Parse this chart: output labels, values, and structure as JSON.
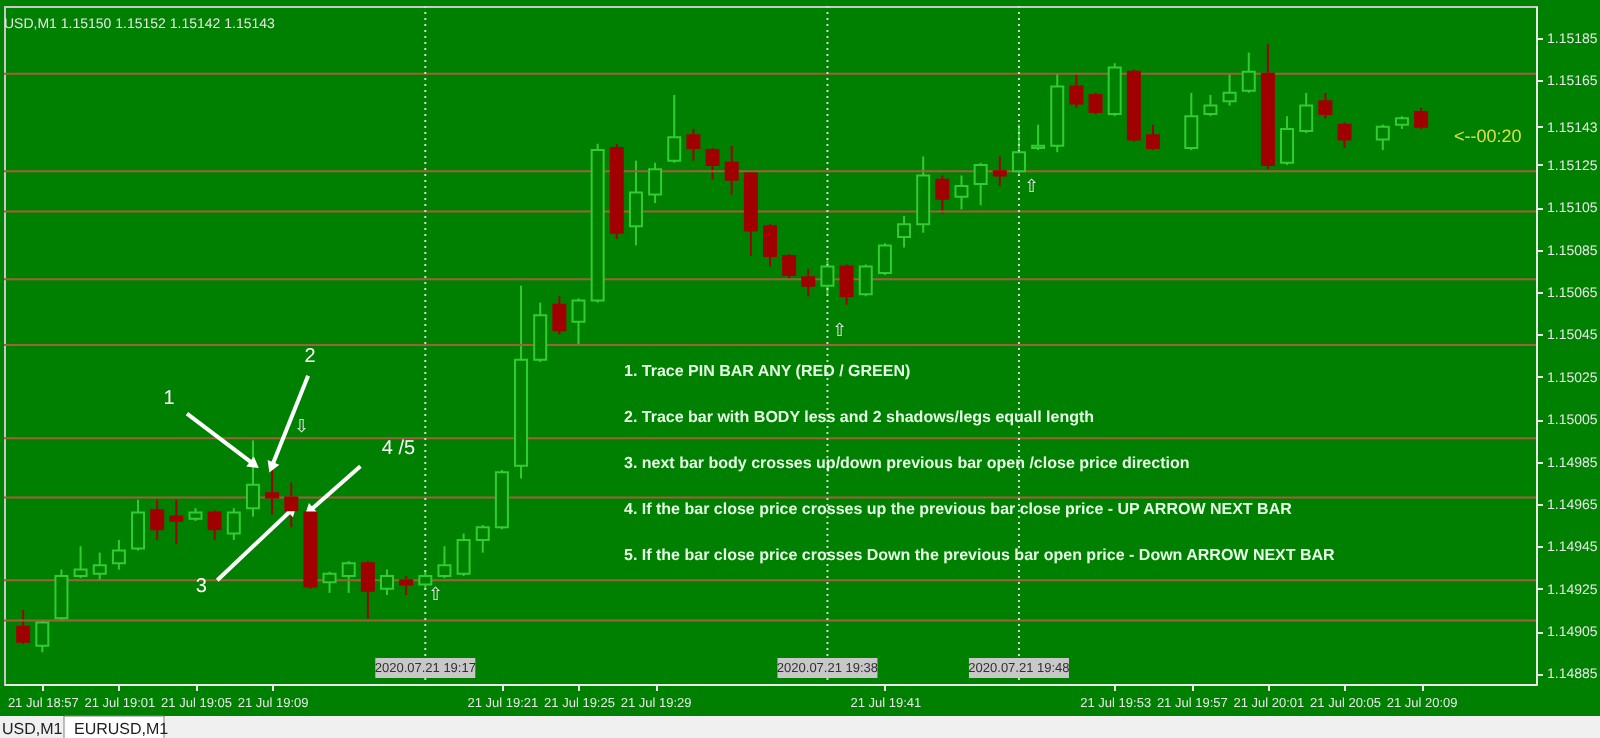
{
  "chart_data": {
    "type": "candlestick",
    "title": "USD,M1  1.15150 1.15152 1.15142 1.15143",
    "x": [
      "2020-07-21T18:56",
      "2020-07-21T18:57",
      "2020-07-21T18:58",
      "2020-07-21T18:59",
      "2020-07-21T19:00",
      "2020-07-21T19:01",
      "2020-07-21T19:02",
      "2020-07-21T19:03",
      "2020-07-21T19:04",
      "2020-07-21T19:05",
      "2020-07-21T19:06",
      "2020-07-21T19:07",
      "2020-07-21T19:08",
      "2020-07-21T19:09",
      "2020-07-21T19:10",
      "2020-07-21T19:11",
      "2020-07-21T19:12",
      "2020-07-21T19:13",
      "2020-07-21T19:14",
      "2020-07-21T19:15",
      "2020-07-21T19:16",
      "2020-07-21T19:17",
      "2020-07-21T19:18",
      "2020-07-21T19:19",
      "2020-07-21T19:20",
      "2020-07-21T19:21",
      "2020-07-21T19:22",
      "2020-07-21T19:23",
      "2020-07-21T19:24",
      "2020-07-21T19:25",
      "2020-07-21T19:26",
      "2020-07-21T19:27",
      "2020-07-21T19:28",
      "2020-07-21T19:29",
      "2020-07-21T19:30",
      "2020-07-21T19:31",
      "2020-07-21T19:32",
      "2020-07-21T19:33",
      "2020-07-21T19:34",
      "2020-07-21T19:35",
      "2020-07-21T19:36",
      "2020-07-21T19:37",
      "2020-07-21T19:38",
      "2020-07-21T19:39",
      "2020-07-21T19:40",
      "2020-07-21T19:41",
      "2020-07-21T19:42",
      "2020-07-21T19:43",
      "2020-07-21T19:44",
      "2020-07-21T19:45",
      "2020-07-21T19:46",
      "2020-07-21T19:47",
      "2020-07-21T19:48",
      "2020-07-21T19:49",
      "2020-07-21T19:50",
      "2020-07-21T19:51",
      "2020-07-21T19:52",
      "2020-07-21T19:53",
      "2020-07-21T19:54",
      "2020-07-21T19:55",
      "2020-07-21T19:57",
      "2020-07-21T19:58",
      "2020-07-21T19:59",
      "2020-07-21T20:00",
      "2020-07-21T20:01",
      "2020-07-21T20:02",
      "2020-07-21T20:03",
      "2020-07-21T20:04",
      "2020-07-21T20:05",
      "2020-07-21T20:07",
      "2020-07-21T20:08",
      "2020-07-21T20:09"
    ],
    "ohlc": [
      [
        1.14907,
        1.14915,
        1.14899,
        1.149
      ],
      [
        1.14898,
        1.1491,
        1.14895,
        1.14909
      ],
      [
        1.14911,
        1.14934,
        1.1491,
        1.14931
      ],
      [
        1.14931,
        1.14945,
        1.1493,
        1.14934
      ],
      [
        1.14932,
        1.14942,
        1.14929,
        1.14936
      ],
      [
        1.14937,
        1.14948,
        1.14934,
        1.14943
      ],
      [
        1.14944,
        1.14967,
        1.14943,
        1.14961
      ],
      [
        1.14962,
        1.14967,
        1.14948,
        1.14953
      ],
      [
        1.14959,
        1.14967,
        1.14946,
        1.14957
      ],
      [
        1.14958,
        1.14963,
        1.14957,
        1.14961
      ],
      [
        1.14961,
        1.14962,
        1.14948,
        1.14953
      ],
      [
        1.14951,
        1.14963,
        1.14948,
        1.14961
      ],
      [
        1.14963,
        1.14995,
        1.14959,
        1.14974
      ],
      [
        1.1497,
        1.14983,
        1.1496,
        1.14968
      ],
      [
        1.14968,
        1.14975,
        1.14954,
        1.14962
      ],
      [
        1.14961,
        1.14962,
        1.14925,
        1.14926
      ],
      [
        1.14928,
        1.14933,
        1.14923,
        1.14932
      ],
      [
        1.14931,
        1.14938,
        1.14923,
        1.14937
      ],
      [
        1.14937,
        1.14938,
        1.14911,
        1.14924
      ],
      [
        1.14925,
        1.14934,
        1.14922,
        1.14931
      ],
      [
        1.14929,
        1.14931,
        1.14922,
        1.14927
      ],
      [
        1.14927,
        1.14933,
        1.14925,
        1.14931
      ],
      [
        1.14931,
        1.14945,
        1.1493,
        1.14936
      ],
      [
        1.14932,
        1.14951,
        1.14931,
        1.14948
      ],
      [
        1.14948,
        1.14955,
        1.14942,
        1.14954
      ],
      [
        1.14954,
        1.14981,
        1.14953,
        1.1498
      ],
      [
        1.14983,
        1.15068,
        1.14977,
        1.15033
      ],
      [
        1.15033,
        1.1506,
        1.15032,
        1.15054
      ],
      [
        1.15059,
        1.15063,
        1.15045,
        1.15047
      ],
      [
        1.15051,
        1.15062,
        1.1504,
        1.15061
      ],
      [
        1.15061,
        1.15135,
        1.1506,
        1.15132
      ],
      [
        1.15133,
        1.15135,
        1.1509,
        1.15093
      ],
      [
        1.15096,
        1.15127,
        1.15087,
        1.15112
      ],
      [
        1.15111,
        1.15126,
        1.15107,
        1.15123
      ],
      [
        1.15127,
        1.15158,
        1.15126,
        1.15138
      ],
      [
        1.15139,
        1.15142,
        1.15127,
        1.15133
      ],
      [
        1.15132,
        1.15133,
        1.15118,
        1.15125
      ],
      [
        1.15126,
        1.15134,
        1.15111,
        1.15118
      ],
      [
        1.15121,
        1.15122,
        1.15082,
        1.15094
      ],
      [
        1.15096,
        1.15097,
        1.15077,
        1.15082
      ],
      [
        1.15082,
        1.15083,
        1.15071,
        1.15073
      ],
      [
        1.15072,
        1.15076,
        1.15063,
        1.15068
      ],
      [
        1.15068,
        1.1508,
        1.15064,
        1.15077
      ],
      [
        1.15077,
        1.15078,
        1.15059,
        1.15063
      ],
      [
        1.15064,
        1.15078,
        1.15063,
        1.15077
      ],
      [
        1.15074,
        1.15088,
        1.15073,
        1.15087
      ],
      [
        1.15091,
        1.15101,
        1.15086,
        1.15097
      ],
      [
        1.15097,
        1.15129,
        1.15093,
        1.1512
      ],
      [
        1.15118,
        1.1512,
        1.15102,
        1.15109
      ],
      [
        1.1511,
        1.1512,
        1.15104,
        1.15115
      ],
      [
        1.15116,
        1.15126,
        1.15106,
        1.15125
      ],
      [
        1.15122,
        1.15129,
        1.15115,
        1.1512
      ],
      [
        1.15122,
        1.15144,
        1.15121,
        1.15131
      ],
      [
        1.15133,
        1.15144,
        1.15132,
        1.15134
      ],
      [
        1.15134,
        1.15168,
        1.15131,
        1.15162
      ],
      [
        1.15162,
        1.15168,
        1.15152,
        1.15154
      ],
      [
        1.15158,
        1.15159,
        1.15149,
        1.1515
      ],
      [
        1.15149,
        1.15173,
        1.15148,
        1.15171
      ],
      [
        1.15169,
        1.1517,
        1.15136,
        1.15137
      ],
      [
        1.15139,
        1.15144,
        1.15132,
        1.15133
      ],
      [
        1.15133,
        1.15159,
        1.15132,
        1.15148
      ],
      [
        1.15149,
        1.15158,
        1.15148,
        1.15153
      ],
      [
        1.15155,
        1.15168,
        1.15153,
        1.15159
      ],
      [
        1.1516,
        1.15178,
        1.15159,
        1.15169
      ],
      [
        1.15168,
        1.15182,
        1.15123,
        1.15125
      ],
      [
        1.15126,
        1.15148,
        1.15125,
        1.15142
      ],
      [
        1.15141,
        1.15159,
        1.1514,
        1.15153
      ],
      [
        1.15155,
        1.15159,
        1.15147,
        1.15149
      ],
      [
        1.15144,
        1.15145,
        1.15133,
        1.15137
      ],
      [
        1.15137,
        1.15144,
        1.15132,
        1.15143
      ],
      [
        1.15144,
        1.15148,
        1.15142,
        1.15147
      ],
      [
        1.1515,
        1.15152,
        1.15142,
        1.15143
      ]
    ],
    "colors": [
      "#a00000",
      "#32cd32",
      "#32cd32",
      "#32cd32",
      "#32cd32",
      "#32cd32",
      "#32cd32",
      "#a00000",
      "#a00000",
      "#32cd32",
      "#a00000",
      "#32cd32",
      "#32cd32",
      "#a00000",
      "#a00000",
      "#a00000",
      "#32cd32",
      "#32cd32",
      "#a00000",
      "#32cd32",
      "#a00000",
      "#32cd32",
      "#32cd32",
      "#32cd32",
      "#32cd32",
      "#32cd32",
      "#32cd32",
      "#32cd32",
      "#a00000",
      "#32cd32",
      "#32cd32",
      "#a00000",
      "#32cd32",
      "#32cd32",
      "#32cd32",
      "#a00000",
      "#a00000",
      "#a00000",
      "#a00000",
      "#a00000",
      "#a00000",
      "#a00000",
      "#32cd32",
      "#a00000",
      "#32cd32",
      "#32cd32",
      "#32cd32",
      "#32cd32",
      "#a00000",
      "#32cd32",
      "#32cd32",
      "#a00000",
      "#32cd32",
      "#32cd32",
      "#32cd32",
      "#a00000",
      "#a00000",
      "#32cd32",
      "#a00000",
      "#a00000",
      "#32cd32",
      "#32cd32",
      "#32cd32",
      "#32cd32",
      "#a00000",
      "#32cd32",
      "#32cd32",
      "#a00000",
      "#a00000",
      "#32cd32",
      "#32cd32",
      "#a00000"
    ],
    "xlim": [
      "2020-07-21T18:55",
      "2020-07-21T20:15"
    ],
    "xticks": [
      {
        "value": "2020-07-21T18:57",
        "label": "21 Jul 18:57"
      },
      {
        "value": "2020-07-21T19:01",
        "label": "21 Jul 19:01"
      },
      {
        "value": "2020-07-21T19:05",
        "label": "21 Jul 19:05"
      },
      {
        "value": "2020-07-21T19:09",
        "label": "21 Jul 19:09"
      },
      {
        "value": "2020-07-21T19:21",
        "label": "21 Jul 19:21"
      },
      {
        "value": "2020-07-21T19:25",
        "label": "21 Jul 19:25"
      },
      {
        "value": "2020-07-21T19:29",
        "label": "21 Jul 19:29"
      },
      {
        "value": "2020-07-21T19:41",
        "label": "21 Jul 19:41"
      },
      {
        "value": "2020-07-21T19:53",
        "label": "21 Jul 19:53"
      },
      {
        "value": "2020-07-21T19:57",
        "label": "21 Jul 19:57"
      },
      {
        "value": "2020-07-21T20:01",
        "label": "21 Jul 20:01"
      },
      {
        "value": "2020-07-21T20:05",
        "label": "21 Jul 20:05"
      },
      {
        "value": "2020-07-21T20:09",
        "label": "21 Jul 20:09"
      }
    ],
    "ylim": [
      1.1488,
      1.152
    ],
    "yticks": [
      1.14885,
      1.14905,
      1.14925,
      1.14945,
      1.14965,
      1.14985,
      1.15005,
      1.15025,
      1.15045,
      1.15065,
      1.15085,
      1.15105,
      1.15125,
      1.15143,
      1.15165,
      1.15185
    ],
    "ref_lines": [
      {
        "axis": "y",
        "value": 1.15168,
        "color": "#a0603c"
      },
      {
        "axis": "y",
        "value": 1.15122,
        "color": "#a0603c"
      },
      {
        "axis": "y",
        "value": 1.15103,
        "color": "#a0603c"
      },
      {
        "axis": "y",
        "value": 1.15071,
        "color": "#a0603c"
      },
      {
        "axis": "y",
        "value": 1.1504,
        "color": "#a0603c"
      },
      {
        "axis": "y",
        "value": 1.14996,
        "color": "#a0603c"
      },
      {
        "axis": "y",
        "value": 1.14968,
        "color": "#a0603c"
      },
      {
        "axis": "y",
        "value": 1.14929,
        "color": "#a0603c"
      },
      {
        "axis": "y",
        "value": 1.1491,
        "color": "#a0603c"
      },
      {
        "axis": "x",
        "value": "2020-07-21T19:17",
        "label": "2020.07.21 19:17",
        "color": "#d8d8d8",
        "line_style": "dotted"
      },
      {
        "axis": "x",
        "value": "2020-07-21T19:38",
        "label": "2020.07.21 19:38",
        "color": "#d8d8d8",
        "line_style": "dotted"
      },
      {
        "axis": "x",
        "value": "2020-07-21T19:48",
        "label": "2020.07.21 19:48",
        "color": "#d8d8d8",
        "line_style": "dotted"
      }
    ],
    "annotations": [
      "1.  Trace PIN BAR ANY (RED / GREEN)",
      "2. Trace  bar with BODY less and 2 shadows/legs equall length",
      "3. next bar body crosses up/down previous bar open /close price direction",
      "4. If the bar close price  crosses up  the previous bar close price  - UP ARROW NEXT BAR",
      "5. If the bar close price  crosses Down  the previous bar open price  - Down ARROW NEXT BAR",
      "USD,M1",
      "EURUSD,M1",
      {
        "text": "1",
        "x": "2020-07-21T19:08",
        "y": 1.14984
      },
      {
        "text": "2",
        "x": "2020-07-21T19:09",
        "y": 1.14983
      },
      {
        "text": "3",
        "x": "2020-07-21T19:10",
        "y": 1.14962
      },
      {
        "text": "4 /5",
        "x": "2020-07-21T19:11",
        "y": 1.14962
      },
      "⇩",
      "⇧",
      "⇧",
      "⇧",
      "<--00:20"
    ]
  }
}
